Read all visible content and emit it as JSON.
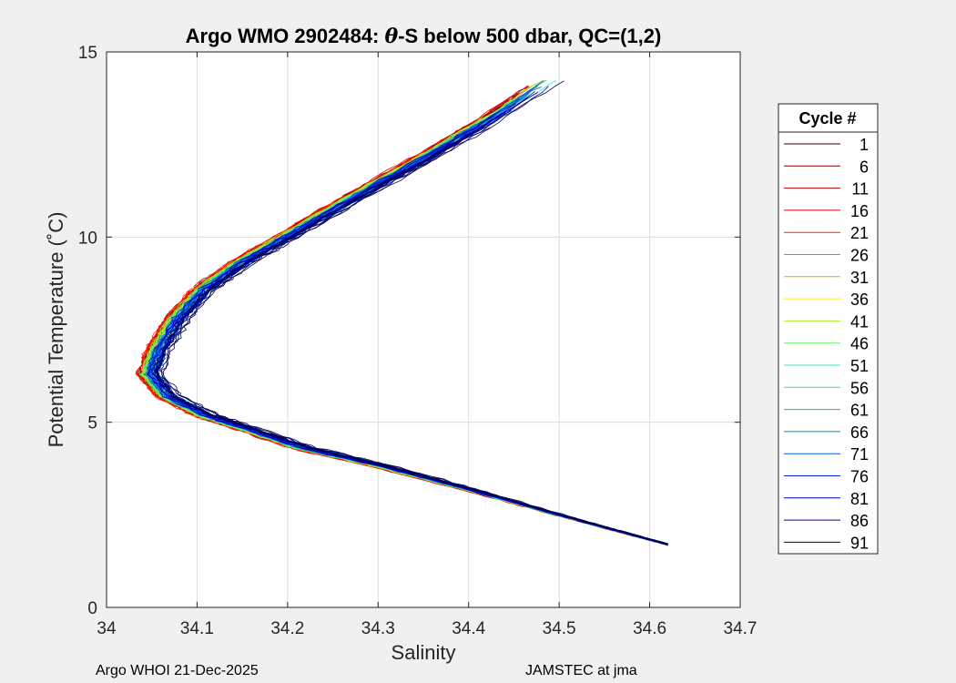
{
  "chart_data": {
    "type": "line",
    "title_prefix": "Argo WMO 2902484: ",
    "title_theta": "θ",
    "title_suffix": "-S below 500 dbar,  QC=(1,2)",
    "xlabel": "Salinity",
    "ylabel": "Potential Temperature (˚C)",
    "xlim": [
      34,
      34.7
    ],
    "ylim": [
      0,
      15
    ],
    "xticks": [
      "34",
      "34.1",
      "34.2",
      "34.3",
      "34.4",
      "34.5",
      "34.6",
      "34.7"
    ],
    "yticks": [
      "0",
      "5",
      "10",
      "15"
    ],
    "grid": true,
    "legend": {
      "title": "Cycle #",
      "position": "right-outside",
      "entries": [
        {
          "label": "1",
          "color": "#300000"
        },
        {
          "label": "6",
          "color": "#800000"
        },
        {
          "label": "11",
          "color": "#b00000"
        },
        {
          "label": "16",
          "color": "#d80000"
        },
        {
          "label": "21",
          "color": "#ff2000"
        },
        {
          "label": "26",
          "color": "#e08000"
        },
        {
          "label": "31",
          "color": "#d0b000"
        },
        {
          "label": "36",
          "color": "#f0f000"
        },
        {
          "label": "41",
          "color": "#b0f020"
        },
        {
          "label": "46",
          "color": "#60f060"
        },
        {
          "label": "51",
          "color": "#30f0a0"
        },
        {
          "label": "56",
          "color": "#20e0d0"
        },
        {
          "label": "61",
          "color": "#10b0e0"
        },
        {
          "label": "66",
          "color": "#0090c0"
        },
        {
          "label": "71",
          "color": "#0060d0"
        },
        {
          "label": "76",
          "color": "#0020f0"
        },
        {
          "label": "81",
          "color": "#0000c0"
        },
        {
          "label": "86",
          "color": "#000090"
        },
        {
          "label": "91",
          "color": "#000050"
        }
      ]
    },
    "series_shape": {
      "description": "Profiles share a C-shaped theta-S curve",
      "salinity": [
        34.62,
        34.56,
        34.5,
        34.4,
        34.3,
        34.22,
        34.16,
        34.11,
        34.07,
        34.05,
        34.06,
        34.08,
        34.11,
        34.15,
        34.2,
        34.27,
        34.35,
        34.42,
        34.5
      ],
      "theta": [
        1.7,
        2.1,
        2.5,
        3.2,
        3.85,
        4.3,
        4.8,
        5.2,
        5.7,
        6.3,
        7.0,
        7.8,
        8.6,
        9.3,
        10.0,
        11.0,
        12.1,
        13.1,
        14.4
      ],
      "offset_groups": {
        "red_early_cycles": -0.01,
        "yellow_green_mid": -0.005,
        "cyan_blue_late": 0.0,
        "dark_latest": 0.012
      }
    }
  },
  "footer": {
    "left": "Argo WHOI 21-Dec-2025",
    "right": "JAMSTEC at jma"
  }
}
